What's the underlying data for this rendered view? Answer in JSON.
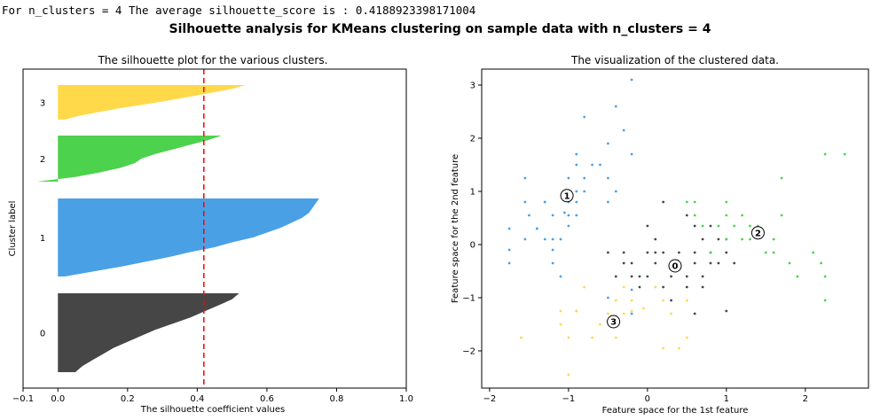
{
  "console_text": "For n_clusters = 4 The average silhouette_score is : 0.4188923398171004",
  "suptitle": "Silhouette analysis for KMeans clustering on sample data with n_clusters = 4",
  "colors": {
    "c0": "#464646",
    "c1": "#4aa0e5",
    "c2": "#4dd24d",
    "c3": "#ffd94a",
    "avg_line": "#ff0000",
    "center_marker": "#ffffff"
  },
  "chart_data": [
    {
      "type": "area",
      "title": "The silhouette plot for the various clusters.",
      "xlabel": "The silhouette coefficient values",
      "ylabel": "Cluster label",
      "xlim": [
        -0.1,
        1.0
      ],
      "xticks": [
        -0.1,
        0.0,
        0.2,
        0.4,
        0.6,
        0.8,
        1.0
      ],
      "xtick_labels": [
        "−0.1",
        "0.0",
        "0.2",
        "0.4",
        "0.6",
        "0.8",
        "1.0"
      ],
      "average_silhouette_score": 0.4188923398171004,
      "clusters": [
        {
          "label": "0",
          "color_key": "c0",
          "min": 0.05,
          "max": 0.52,
          "profile": [
            0.52,
            0.5,
            0.46,
            0.42,
            0.38,
            0.33,
            0.28,
            0.24,
            0.2,
            0.16,
            0.13,
            0.1,
            0.07,
            0.05
          ]
        },
        {
          "label": "1",
          "color_key": "c1",
          "min": 0.02,
          "max": 0.75,
          "profile": [
            0.75,
            0.74,
            0.73,
            0.72,
            0.7,
            0.67,
            0.64,
            0.6,
            0.56,
            0.5,
            0.45,
            0.38,
            0.32,
            0.25,
            0.18,
            0.1,
            0.02
          ]
        },
        {
          "label": "2",
          "color_key": "c2",
          "min": -0.06,
          "max": 0.47,
          "profile": [
            0.47,
            0.43,
            0.38,
            0.33,
            0.28,
            0.24,
            0.22,
            0.18,
            0.12,
            0.05,
            -0.06
          ]
        },
        {
          "label": "3",
          "color_key": "c3",
          "min": 0.0,
          "max": 0.54,
          "profile": [
            0.54,
            0.5,
            0.44,
            0.38,
            0.32,
            0.25,
            0.18,
            0.12,
            0.06,
            0.02
          ]
        }
      ]
    },
    {
      "type": "scatter",
      "title": "The visualization of the clustered data.",
      "xlabel": "Feature space for the 1st feature",
      "ylabel": "Feature space for the 2nd feature",
      "xlim": [
        -2.1,
        2.8
      ],
      "ylim": [
        -2.7,
        3.3
      ],
      "xticks": [
        -2,
        -1,
        0,
        1,
        2
      ],
      "xtick_labels": [
        "−2",
        "−1",
        "0",
        "1",
        "2"
      ],
      "yticks": [
        -2,
        -1,
        0,
        1,
        2,
        3
      ],
      "ytick_labels": [
        "−2",
        "−1",
        "0",
        "1",
        "2",
        "3"
      ],
      "centers": [
        {
          "label": "0",
          "x": 0.35,
          "y": -0.4
        },
        {
          "label": "1",
          "x": -1.02,
          "y": 0.92
        },
        {
          "label": "2",
          "x": 1.4,
          "y": 0.22
        },
        {
          "label": "3",
          "x": -0.43,
          "y": -1.45
        }
      ],
      "points": {
        "c1": [
          [
            -1.75,
            0.3
          ],
          [
            -1.75,
            -0.1
          ],
          [
            -1.75,
            -0.35
          ],
          [
            -1.55,
            1.25
          ],
          [
            -1.55,
            0.8
          ],
          [
            -1.55,
            0.1
          ],
          [
            -1.5,
            0.55
          ],
          [
            -1.4,
            0.3
          ],
          [
            -1.4,
            0.3
          ],
          [
            -1.3,
            0.8
          ],
          [
            -1.3,
            0.1
          ],
          [
            -1.2,
            0.55
          ],
          [
            -1.2,
            0.1
          ],
          [
            -1.2,
            -0.1
          ],
          [
            -1.2,
            -0.35
          ],
          [
            -1.1,
            0.1
          ],
          [
            -1.1,
            -0.6
          ],
          [
            -1.0,
            1.25
          ],
          [
            -1.0,
            1.0
          ],
          [
            -1.0,
            0.8
          ],
          [
            -1.0,
            0.55
          ],
          [
            -1.0,
            0.35
          ],
          [
            -0.9,
            1.7
          ],
          [
            -0.9,
            1.5
          ],
          [
            -0.9,
            1.0
          ],
          [
            -0.9,
            0.8
          ],
          [
            -0.9,
            0.55
          ],
          [
            -0.9,
            -1.25
          ],
          [
            -0.8,
            2.4
          ],
          [
            -0.8,
            1.25
          ],
          [
            -0.8,
            1.0
          ],
          [
            -0.7,
            1.5
          ],
          [
            -0.6,
            1.5
          ],
          [
            -0.5,
            1.9
          ],
          [
            -0.5,
            1.25
          ],
          [
            -0.5,
            0.8
          ],
          [
            -0.5,
            -1.0
          ],
          [
            -0.4,
            2.6
          ],
          [
            -0.4,
            1.0
          ],
          [
            -0.3,
            2.15
          ],
          [
            -0.2,
            3.1
          ],
          [
            -0.2,
            1.7
          ],
          [
            -0.2,
            -0.85
          ],
          [
            -0.2,
            -1.3
          ],
          [
            -1.3,
            0.8
          ],
          [
            -1.05,
            0.6
          ]
        ],
        "c0": [
          [
            -0.5,
            -0.15
          ],
          [
            -0.4,
            -0.6
          ],
          [
            -0.3,
            -0.35
          ],
          [
            -0.3,
            -0.15
          ],
          [
            -0.2,
            -0.6
          ],
          [
            -0.2,
            -0.35
          ],
          [
            -0.1,
            -0.8
          ],
          [
            -0.1,
            -0.6
          ],
          [
            0.0,
            0.35
          ],
          [
            0.0,
            -0.15
          ],
          [
            0.0,
            -0.6
          ],
          [
            0.1,
            -0.35
          ],
          [
            0.1,
            -0.15
          ],
          [
            0.1,
            0.1
          ],
          [
            0.2,
            -0.8
          ],
          [
            0.2,
            -0.15
          ],
          [
            0.2,
            0.8
          ],
          [
            0.3,
            -0.6
          ],
          [
            0.3,
            -1.05
          ],
          [
            0.4,
            -0.15
          ],
          [
            0.4,
            -0.35
          ],
          [
            0.5,
            -0.6
          ],
          [
            0.5,
            -0.8
          ],
          [
            0.6,
            -0.35
          ],
          [
            0.6,
            -0.15
          ],
          [
            0.6,
            0.35
          ],
          [
            0.6,
            -1.3
          ],
          [
            0.7,
            -0.6
          ],
          [
            0.7,
            -0.8
          ],
          [
            0.7,
            0.1
          ],
          [
            0.8,
            -0.15
          ],
          [
            0.8,
            -0.35
          ],
          [
            0.9,
            -0.35
          ],
          [
            0.9,
            0.1
          ],
          [
            1.0,
            0.1
          ],
          [
            1.0,
            -0.15
          ],
          [
            1.0,
            -1.25
          ],
          [
            1.1,
            -0.35
          ],
          [
            0.5,
            0.55
          ],
          [
            0.8,
            0.35
          ]
        ],
        "c2": [
          [
            0.5,
            0.8
          ],
          [
            0.6,
            0.8
          ],
          [
            0.6,
            0.55
          ],
          [
            0.7,
            0.35
          ],
          [
            0.8,
            -0.15
          ],
          [
            0.9,
            0.35
          ],
          [
            1.0,
            0.55
          ],
          [
            1.0,
            0.8
          ],
          [
            1.0,
            0.1
          ],
          [
            1.1,
            0.35
          ],
          [
            1.2,
            0.1
          ],
          [
            1.3,
            0.35
          ],
          [
            1.3,
            0.1
          ],
          [
            1.4,
            0.35
          ],
          [
            1.5,
            -0.15
          ],
          [
            1.6,
            0.1
          ],
          [
            1.6,
            -0.15
          ],
          [
            1.7,
            1.25
          ],
          [
            1.7,
            0.55
          ],
          [
            1.8,
            -0.35
          ],
          [
            1.9,
            -0.6
          ],
          [
            2.1,
            -0.15
          ],
          [
            2.2,
            -0.35
          ],
          [
            2.25,
            -0.6
          ],
          [
            2.25,
            -1.05
          ],
          [
            2.25,
            1.7
          ],
          [
            2.5,
            1.7
          ],
          [
            1.2,
            0.55
          ]
        ],
        "c3": [
          [
            -1.6,
            -1.75
          ],
          [
            -1.1,
            -1.25
          ],
          [
            -1.1,
            -1.5
          ],
          [
            -1.0,
            -1.75
          ],
          [
            -1.0,
            -2.45
          ],
          [
            -0.9,
            -1.25
          ],
          [
            -0.8,
            -0.8
          ],
          [
            -0.7,
            -1.75
          ],
          [
            -0.6,
            -1.5
          ],
          [
            -0.5,
            -1.3
          ],
          [
            -0.4,
            -1.05
          ],
          [
            -0.4,
            -1.75
          ],
          [
            -0.3,
            -1.3
          ],
          [
            -0.3,
            -0.8
          ],
          [
            -0.2,
            -1.05
          ],
          [
            -0.2,
            -1.25
          ],
          [
            0.1,
            -0.8
          ],
          [
            0.2,
            -1.05
          ],
          [
            0.2,
            -1.95
          ],
          [
            0.4,
            -1.95
          ],
          [
            0.5,
            -1.75
          ],
          [
            0.5,
            -1.05
          ],
          [
            0.3,
            -1.3
          ],
          [
            -0.05,
            -1.2
          ]
        ]
      }
    }
  ]
}
